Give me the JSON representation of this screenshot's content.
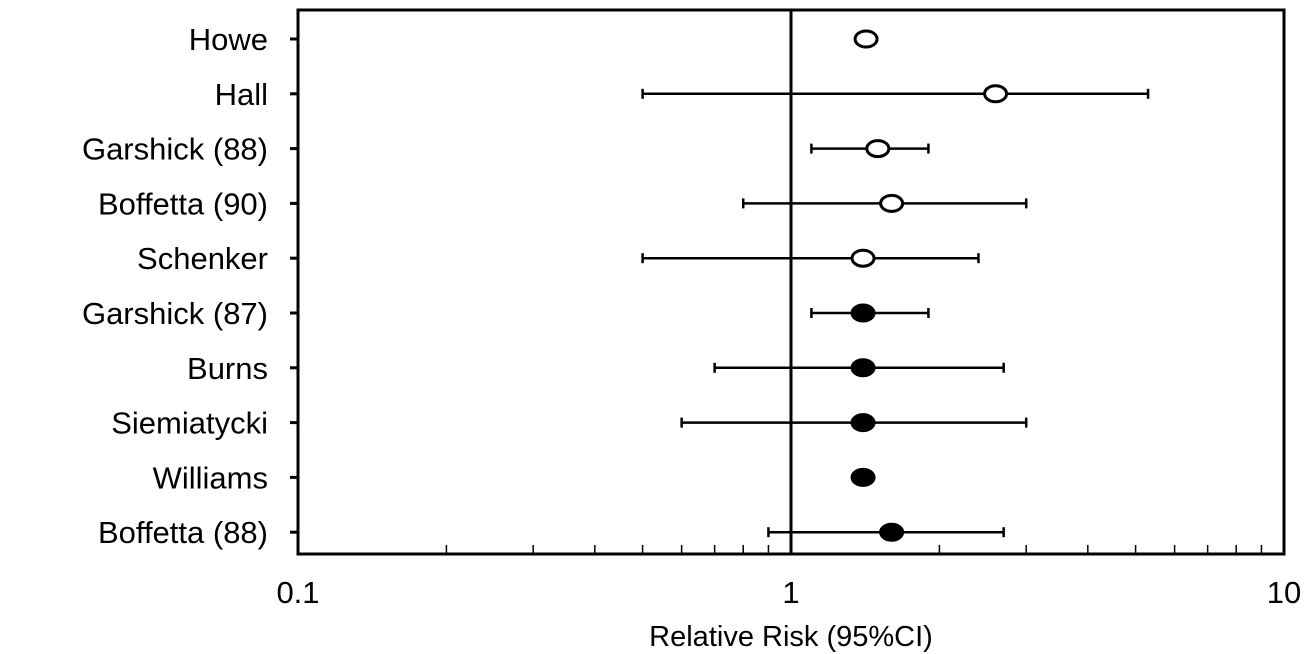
{
  "chart_data": {
    "type": "scatter",
    "subtype": "forest-plot",
    "title": "",
    "xlabel": "Relative Risk (95%CI)",
    "ylabel": "",
    "x_scale": "log",
    "xlim": [
      0.1,
      10
    ],
    "x_ticks": [
      0.1,
      1,
      10
    ],
    "x_tick_labels": [
      "0.1",
      "1",
      "10"
    ],
    "reference_line": 1,
    "grid": false,
    "legend": "none",
    "studies": [
      {
        "label": "Howe",
        "rr": 1.42,
        "ci_low": null,
        "ci_high": null,
        "marker": "open"
      },
      {
        "label": "Hall",
        "rr": 2.6,
        "ci_low": 0.5,
        "ci_high": 5.3,
        "marker": "open"
      },
      {
        "label": "Garshick (88)",
        "rr": 1.5,
        "ci_low": 1.1,
        "ci_high": 1.9,
        "marker": "open"
      },
      {
        "label": "Boffetta (90)",
        "rr": 1.6,
        "ci_low": 0.8,
        "ci_high": 3.0,
        "marker": "open"
      },
      {
        "label": "Schenker",
        "rr": 1.4,
        "ci_low": 0.5,
        "ci_high": 2.4,
        "marker": "open"
      },
      {
        "label": "Garshick (87)",
        "rr": 1.4,
        "ci_low": 1.1,
        "ci_high": 1.9,
        "marker": "filled"
      },
      {
        "label": "Burns",
        "rr": 1.4,
        "ci_low": 0.7,
        "ci_high": 2.7,
        "marker": "filled"
      },
      {
        "label": "Siemiatycki",
        "rr": 1.4,
        "ci_low": 0.6,
        "ci_high": 3.0,
        "marker": "filled"
      },
      {
        "label": "Williams",
        "rr": 1.4,
        "ci_low": null,
        "ci_high": null,
        "marker": "filled"
      },
      {
        "label": "Boffetta (88)",
        "rr": 1.6,
        "ci_low": 0.9,
        "ci_high": 2.7,
        "marker": "filled"
      }
    ],
    "colors": {
      "line": "#000000",
      "open_fill": "#ffffff",
      "filled_fill": "#000000"
    }
  }
}
